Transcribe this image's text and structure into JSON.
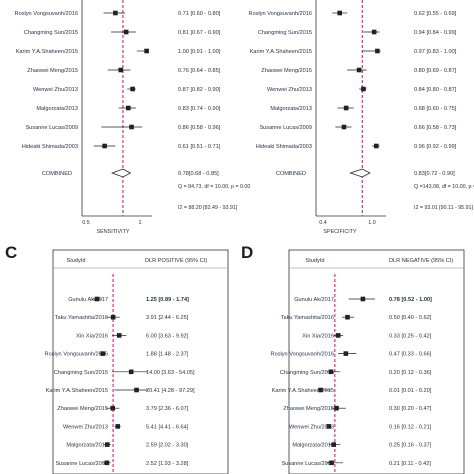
{
  "chart_data": [
    {
      "type": "forest",
      "panel": "A",
      "xlabel": "SENSITIVITY",
      "x_ticks": [
        "0.5",
        "1"
      ],
      "xlim": [
        0.4,
        1.05
      ],
      "pooled_line": 0.78,
      "rows": [
        {
          "study": "Roslyn Vongsuvanh/2016",
          "est": 0.71,
          "lo": 0.6,
          "hi": 0.8,
          "ci_text": "0.71 [0.60 - 0.80]"
        },
        {
          "study": "Changming Sun/2015",
          "est": 0.81,
          "lo": 0.67,
          "hi": 0.9,
          "ci_text": "0.81 [0.67 - 0.90]"
        },
        {
          "study": "Karim Y.A.Shaheen/2015",
          "est": 1.0,
          "lo": 0.91,
          "hi": 1.0,
          "ci_text": "1.00 [0.91 - 1.00]"
        },
        {
          "study": "Zhaowei Meng/2015",
          "est": 0.76,
          "lo": 0.64,
          "hi": 0.85,
          "ci_text": "0.76 [0.64 - 0.85]"
        },
        {
          "study": "Wenwei Zhu/2013",
          "est": 0.87,
          "lo": 0.82,
          "hi": 0.9,
          "ci_text": "0.87 [0.82 - 0.90]"
        },
        {
          "study": "Malgorzata/2013",
          "est": 0.83,
          "lo": 0.74,
          "hi": 0.9,
          "ci_text": "0.83 [0.74 - 0.90]"
        },
        {
          "study": "Susanne Lucas/2009",
          "est": 0.86,
          "lo": 0.58,
          "hi": 0.96,
          "ci_text": "0.86 [0.58 - 0.96]"
        },
        {
          "study": "Hideaki Shimada/2003",
          "est": 0.61,
          "lo": 0.51,
          "hi": 0.71,
          "ci_text": "0.61 [0.51 - 0.71]"
        }
      ],
      "combined": {
        "label": "COMBINED",
        "est": 0.78,
        "lo": 0.68,
        "hi": 0.85,
        "ci_text": "0.78[0.68 - 0.85]"
      },
      "stats": [
        "Q = 84.73, df = 10.00, p = 0.00",
        "I2 = 88.20 [82.49 - 93.91]"
      ]
    },
    {
      "type": "forest",
      "panel": "B",
      "xlabel": "SPECIFICITY",
      "x_ticks": [
        "0.4",
        "1.0"
      ],
      "xlim": [
        0.4,
        1.05
      ],
      "pooled_line": 0.83,
      "rows": [
        {
          "study": "Roslyn Vongsuvanh/2016",
          "est": 0.62,
          "lo": 0.55,
          "hi": 0.69,
          "ci_text": "0.62 [0.55 - 0.69]"
        },
        {
          "study": "Changming Sun/2015",
          "est": 0.94,
          "lo": 0.84,
          "hi": 0.99,
          "ci_text": "0.94 [0.84 - 0.99]"
        },
        {
          "study": "Karim Y.A.Shaheen/2015",
          "est": 0.97,
          "lo": 0.83,
          "hi": 1.0,
          "ci_text": "0.97 [0.83 - 1.00]"
        },
        {
          "study": "Zhaowei Meng/2015",
          "est": 0.8,
          "lo": 0.69,
          "hi": 0.87,
          "ci_text": "0.80 [0.69 - 0.87]"
        },
        {
          "study": "Wenwei Zhu/2013",
          "est": 0.84,
          "lo": 0.8,
          "hi": 0.87,
          "ci_text": "0.84 [0.80 - 0.87]"
        },
        {
          "study": "Malgorzata/2013",
          "est": 0.68,
          "lo": 0.6,
          "hi": 0.75,
          "ci_text": "0.68 [0.60 - 0.75]"
        },
        {
          "study": "Susanne Lucas/2009",
          "est": 0.66,
          "lo": 0.58,
          "hi": 0.73,
          "ci_text": "0.66 [0.58 - 0.73]"
        },
        {
          "study": "Hideaki Shimada/2003",
          "est": 0.96,
          "lo": 0.92,
          "hi": 0.99,
          "ci_text": "0.96 [0.92 - 0.99]"
        }
      ],
      "combined": {
        "label": "COMBINED",
        "est": 0.83,
        "lo": 0.72,
        "hi": 0.9,
        "ci_text": "0.83[0.72 - 0.90]"
      },
      "stats": [
        "Q =143.08, df = 10.00, p = 0.00",
        "I2 = 93.01 [90.11 - 95.91]"
      ]
    },
    {
      "type": "forest",
      "panel": "C",
      "col_study": "StudyId",
      "col_ci": "DLR POSITIVE (95% CI)",
      "xlim": [
        0.5,
        30
      ],
      "pooled_line": 3.9,
      "rows": [
        {
          "study": "Gunulu Ak/2017",
          "est": 1.25,
          "lo": 0.89,
          "hi": 1.74,
          "ci_text": "1.25 [0.89 - 1.74]"
        },
        {
          "study": "Taku Yamashita/2016",
          "est": 3.91,
          "lo": 2.44,
          "hi": 6.25,
          "ci_text": "3.91 [2.44 - 6.25]"
        },
        {
          "study": "Xin Xia/2016",
          "est": 6.0,
          "lo": 3.63,
          "hi": 9.92,
          "ci_text": "6.00 [3.63 - 9.92]"
        },
        {
          "study": "Roslyn Vongsuvanh/2016",
          "est": 1.88,
          "lo": 1.48,
          "hi": 2.37,
          "ci_text": "1.88 [1.48 - 2.37]"
        },
        {
          "study": "Changming Sun/2015",
          "est": 14.0,
          "lo": 3.63,
          "hi": 54.05,
          "ci_text": "14.00 [3.63 - 54.05]"
        },
        {
          "study": "Karim Y.A.Shaheen/2015",
          "est": 20.41,
          "lo": 4.28,
          "hi": 97.29,
          "ci_text": "20.41 [4.28 - 97.29]"
        },
        {
          "study": "Zhaowei Meng/2015",
          "est": 3.79,
          "lo": 2.36,
          "hi": 6.07,
          "ci_text": "3.79 [2.36 - 6.07]"
        },
        {
          "study": "Wenwei Zhu/2013",
          "est": 5.41,
          "lo": 4.41,
          "hi": 6.64,
          "ci_text": "5.41 [4.41 - 6.64]"
        },
        {
          "study": "Malgorzata/2013",
          "est": 2.59,
          "lo": 2.02,
          "hi": 3.3,
          "ci_text": "2.59 [2.02 - 3.30]"
        },
        {
          "study": "Susanne Lucas/2009",
          "est": 2.52,
          "lo": 1.93,
          "hi": 3.28,
          "ci_text": "2.52 [1.93 - 3.28]"
        }
      ]
    },
    {
      "type": "forest",
      "panel": "D",
      "col_study": "StudyId",
      "col_ci": "DLR NEGATIVE (95% CI)",
      "xlim": [
        0,
        1.2
      ],
      "pooled_line": 0.27,
      "rows": [
        {
          "study": "Gunulu Ak/2017",
          "est": 0.78,
          "lo": 0.52,
          "hi": 1.0,
          "ci_text": "0.78 [0.52 - 1.00]"
        },
        {
          "study": "Taku Yamashita/2016",
          "est": 0.5,
          "lo": 0.4,
          "hi": 0.62,
          "ci_text": "0.50 [0.40 - 0.62]"
        },
        {
          "study": "Xin Xia/2016",
          "est": 0.33,
          "lo": 0.25,
          "hi": 0.42,
          "ci_text": "0.33 [0.25 - 0.42]"
        },
        {
          "study": "Roslyn Vongsuvanh/2016",
          "est": 0.47,
          "lo": 0.33,
          "hi": 0.66,
          "ci_text": "0.47 [0.33 - 0.66]"
        },
        {
          "study": "Changming Sun/2015",
          "est": 0.2,
          "lo": 0.12,
          "hi": 0.36,
          "ci_text": "0.20 [0.12 - 0.36]"
        },
        {
          "study": "Karim Y.A.Shaheen/2015",
          "est": 0.01,
          "lo": 0.01,
          "hi": 0.2,
          "ci_text": "0.01 [0.01 - 0.20]"
        },
        {
          "study": "Zhaowei Meng/2015",
          "est": 0.3,
          "lo": 0.2,
          "hi": 0.47,
          "ci_text": "0.30 [0.20 - 0.47]"
        },
        {
          "study": "Wenwei Zhu/2013",
          "est": 0.16,
          "lo": 0.12,
          "hi": 0.21,
          "ci_text": "0.16 [0.12 - 0.21]"
        },
        {
          "study": "Malgorzata/2013",
          "est": 0.25,
          "lo": 0.16,
          "hi": 0.37,
          "ci_text": "0.25 [0.16 - 0.37]"
        },
        {
          "study": "Susanne Lucas/2009",
          "est": 0.21,
          "lo": 0.11,
          "hi": 0.42,
          "ci_text": "0.21 [0.11 - 0.42]"
        }
      ]
    }
  ],
  "colors": {
    "pooled_line": "#d5308f",
    "marker": "#222222",
    "text": "#1f2f44"
  }
}
